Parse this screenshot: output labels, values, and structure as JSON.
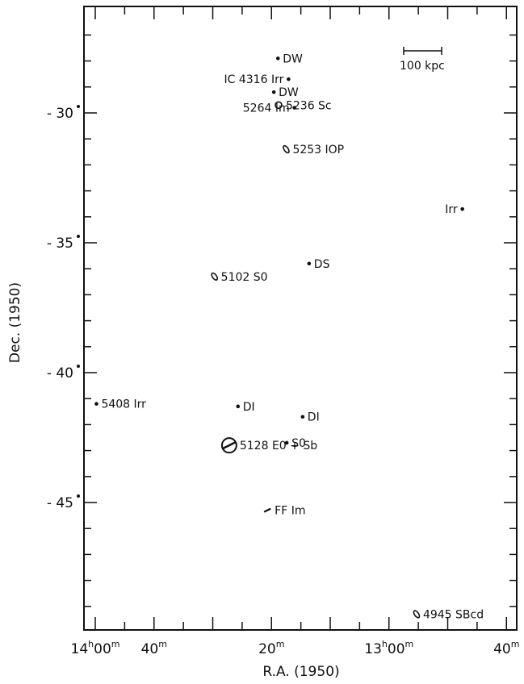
{
  "chart_data": {
    "type": "scatter",
    "xlabel": "R.A. (1950)",
    "ylabel": "Dec. (1950)",
    "xlim": [
      -3.4,
      15.0
    ],
    "ylim": [
      -52.2,
      -26.2
    ],
    "x_axis_reversed": true,
    "x_ticks": [
      {
        "value": 0,
        "h": "14",
        "m": "00"
      },
      {
        "value": 10,
        "h": "",
        "m": "40"
      },
      {
        "value": 30,
        "h": "",
        "m": "20"
      },
      {
        "value": 50,
        "h": "13",
        "m": "00"
      },
      {
        "value": 70,
        "h": "",
        "m": "40"
      }
    ],
    "y_ticks": [
      {
        "value": -30,
        "label": "- 30"
      },
      {
        "value": -35,
        "label": "- 35"
      },
      {
        "value": -40,
        "label": "- 40"
      },
      {
        "value": -45,
        "label": "- 45"
      }
    ],
    "scale_bar_label": "100 kpc",
    "points": [
      {
        "ra_min": 31.1,
        "dec": -27.9,
        "name": "DW",
        "marker": "dot"
      },
      {
        "ra_min": 32.9,
        "dec": -28.7,
        "name": "IC 4316 Irr",
        "marker": "dot",
        "label_side": "left"
      },
      {
        "ra_min": 30.4,
        "dec": -29.2,
        "name": "DW",
        "marker": "dot"
      },
      {
        "ra_min": 33.9,
        "dec": -29.8,
        "name": "5264 Im",
        "marker": "dot",
        "label_side": "left"
      },
      {
        "ra_min": 31.2,
        "dec": -29.7,
        "name": "5236 Sc",
        "marker": "circle"
      },
      {
        "ra_min": 32.5,
        "dec": -31.4,
        "name": "5253 IOP",
        "marker": "ellipse"
      },
      {
        "ra_min": 62.5,
        "dec": -33.7,
        "name": "Irr",
        "marker": "dot",
        "label_side": "left"
      },
      {
        "ra_min": 36.4,
        "dec": -35.8,
        "name": "DS",
        "marker": "dot"
      },
      {
        "ra_min": 20.3,
        "dec": -36.3,
        "name": "5102 S0",
        "marker": "ellipse"
      },
      {
        "ra_min": 0.2,
        "dec": -41.2,
        "name": "5408 Irr",
        "marker": "dot"
      },
      {
        "ra_min": 24.3,
        "dec": -41.3,
        "name": "DI",
        "marker": "dot"
      },
      {
        "ra_min": 35.3,
        "dec": -41.7,
        "name": "DI",
        "marker": "dot"
      },
      {
        "ra_min": 32.6,
        "dec": -42.7,
        "name": "S0",
        "marker": "dot"
      },
      {
        "ra_min": 22.8,
        "dec": -42.8,
        "name": "5128 E0 + Sb",
        "marker": "circle_bar"
      },
      {
        "ra_min": 29.3,
        "dec": -45.3,
        "name": "FF Im",
        "marker": "dash"
      },
      {
        "ra_min": 54.7,
        "dec": -49.3,
        "name": "4945 SBcd",
        "marker": "ellipse"
      }
    ]
  }
}
